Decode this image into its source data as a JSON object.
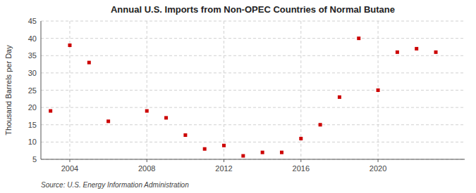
{
  "chart_data": {
    "type": "scatter",
    "title": "Annual U.S. Imports from Non-OPEC Countries of Normal Butane",
    "ylabel": "Thousand Barrels per Day",
    "source": "Source: U.S. Energy Information Administration",
    "x": [
      2003,
      2004,
      2005,
      2006,
      2008,
      2009,
      2010,
      2011,
      2012,
      2013,
      2014,
      2015,
      2016,
      2017,
      2018,
      2019,
      2020,
      2021,
      2022,
      2023
    ],
    "values": [
      19,
      38,
      33,
      16,
      19,
      17,
      12,
      8,
      9,
      6,
      7,
      7,
      11,
      15,
      23,
      40,
      25,
      36,
      37,
      36
    ],
    "xlim": [
      2002.5,
      2024.5
    ],
    "ylim": [
      5,
      45
    ],
    "xticks": [
      2004,
      2008,
      2012,
      2016,
      2020
    ],
    "yticks": [
      5,
      10,
      15,
      20,
      25,
      30,
      35,
      40,
      45
    ],
    "color": "#cc0000",
    "marker": "square",
    "grid": true
  }
}
